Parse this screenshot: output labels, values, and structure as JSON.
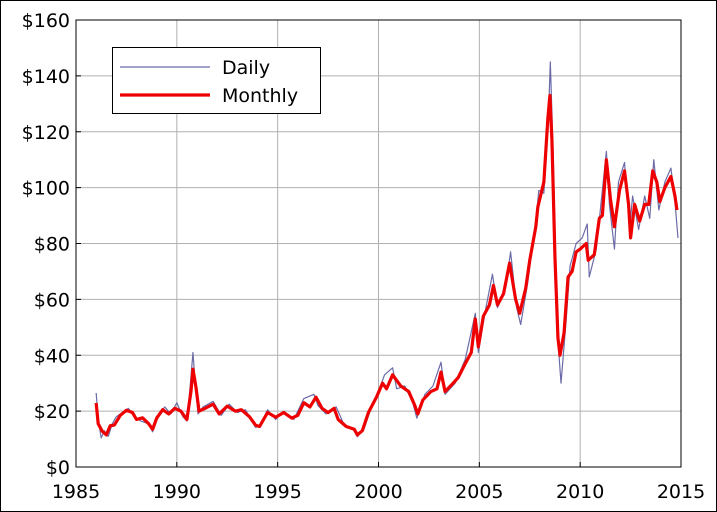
{
  "chart_data": {
    "type": "line",
    "xlim": [
      1985,
      2015
    ],
    "xticks": [
      1985,
      1990,
      1995,
      2000,
      2005,
      2010,
      2015
    ],
    "ylim": [
      0,
      160
    ],
    "yticks": [
      {
        "value": 0,
        "label": "$0"
      },
      {
        "value": 20,
        "label": "$20"
      },
      {
        "value": 40,
        "label": "$40"
      },
      {
        "value": 60,
        "label": "$60"
      },
      {
        "value": 80,
        "label": "$80"
      },
      {
        "value": 100,
        "label": "$100"
      },
      {
        "value": 120,
        "label": "$120"
      },
      {
        "value": 140,
        "label": "$140"
      },
      {
        "value": 160,
        "label": "$160"
      }
    ],
    "grid": true,
    "legend": "upper left",
    "series": [
      {
        "name": "Daily",
        "color": "#6b6ba8",
        "width": 1.2,
        "x": [
          1986.0,
          1986.1,
          1986.25,
          1986.4,
          1986.6,
          1986.8,
          1987.0,
          1987.3,
          1987.6,
          1987.9,
          1988.2,
          1988.6,
          1988.8,
          1989.1,
          1989.4,
          1989.7,
          1990.0,
          1990.3,
          1990.5,
          1990.65,
          1990.8,
          1990.9,
          1991.05,
          1991.3,
          1991.8,
          1992.2,
          1992.6,
          1993.0,
          1993.4,
          1993.9,
          1994.1,
          1994.5,
          1994.9,
          1995.3,
          1995.8,
          1996.3,
          1996.8,
          1997.0,
          1997.4,
          1997.9,
          1998.3,
          1998.7,
          1998.95,
          1999.3,
          1999.7,
          2000.0,
          2000.3,
          2000.7,
          2000.9,
          2001.3,
          2001.7,
          2001.9,
          2002.3,
          2002.7,
          2003.1,
          2003.3,
          2003.8,
          2004.3,
          2004.8,
          2004.95,
          2005.3,
          2005.65,
          2005.9,
          2006.3,
          2006.55,
          2006.85,
          2007.05,
          2007.4,
          2007.8,
          2007.95,
          2008.2,
          2008.45,
          2008.52,
          2008.65,
          2008.8,
          2008.95,
          2009.05,
          2009.3,
          2009.5,
          2009.8,
          2010.1,
          2010.35,
          2010.45,
          2010.8,
          2011.0,
          2011.3,
          2011.45,
          2011.7,
          2011.9,
          2012.2,
          2012.45,
          2012.6,
          2012.9,
          2013.2,
          2013.45,
          2013.65,
          2013.9,
          2014.2,
          2014.5,
          2014.7,
          2014.85
        ],
        "values": [
          26.5,
          17.0,
          10.4,
          13.0,
          11.0,
          15.5,
          18.0,
          19.5,
          21.0,
          18.0,
          16.5,
          15.5,
          12.6,
          18.5,
          21.5,
          19.0,
          23.0,
          18.0,
          16.5,
          28.0,
          41.0,
          31.0,
          19.0,
          21.5,
          23.5,
          18.5,
          22.5,
          19.5,
          20.5,
          14.2,
          14.5,
          20.5,
          17.0,
          20.0,
          17.0,
          24.5,
          26.0,
          22.0,
          19.0,
          21.5,
          15.0,
          14.0,
          10.8,
          14.0,
          22.5,
          27.0,
          33.0,
          35.5,
          28.0,
          29.0,
          23.0,
          17.5,
          26.0,
          29.0,
          37.5,
          26.0,
          30.0,
          38.5,
          55.0,
          41.0,
          56.0,
          69.0,
          57.0,
          64.0,
          77.0,
          57.0,
          51.0,
          66.0,
          88.0,
          99.0,
          98.0,
          130.0,
          145.0,
          115.0,
          70.0,
          40.0,
          30.0,
          52.0,
          72.0,
          80.0,
          82.0,
          87.0,
          68.0,
          78.0,
          92.0,
          113.0,
          94.0,
          78.0,
          102.0,
          109.0,
          85.0,
          97.0,
          85.0,
          97.0,
          89.0,
          110.0,
          92.0,
          102.0,
          107.0,
          95.0,
          82.0
        ]
      },
      {
        "name": "Monthly",
        "color": "#ee0000",
        "width": 3.2,
        "x": [
          1986.0,
          1986.1,
          1986.3,
          1986.5,
          1986.7,
          1986.9,
          1987.2,
          1987.5,
          1987.8,
          1988.0,
          1988.3,
          1988.6,
          1988.8,
          1989.0,
          1989.3,
          1989.6,
          1989.9,
          1990.2,
          1990.5,
          1990.7,
          1990.8,
          1990.95,
          1991.1,
          1991.4,
          1991.8,
          1992.1,
          1992.5,
          1992.9,
          1993.2,
          1993.6,
          1993.9,
          1994.1,
          1994.5,
          1994.9,
          1995.3,
          1995.7,
          1996.0,
          1996.3,
          1996.6,
          1996.9,
          1997.2,
          1997.5,
          1997.8,
          1998.0,
          1998.4,
          1998.8,
          1998.95,
          1999.2,
          1999.5,
          1999.9,
          2000.2,
          2000.4,
          2000.7,
          2000.9,
          2001.1,
          2001.5,
          2001.8,
          2001.95,
          2002.2,
          2002.6,
          2002.9,
          2003.1,
          2003.3,
          2003.7,
          2003.95,
          2004.3,
          2004.6,
          2004.8,
          2004.95,
          2005.2,
          2005.5,
          2005.7,
          2005.9,
          2006.2,
          2006.5,
          2006.8,
          2007.0,
          2007.3,
          2007.5,
          2007.8,
          2007.9,
          2008.2,
          2008.4,
          2008.5,
          2008.6,
          2008.75,
          2008.9,
          2009.0,
          2009.2,
          2009.4,
          2009.6,
          2009.8,
          2010.0,
          2010.3,
          2010.4,
          2010.7,
          2010.95,
          2011.1,
          2011.3,
          2011.5,
          2011.7,
          2011.95,
          2012.2,
          2012.4,
          2012.5,
          2012.7,
          2012.95,
          2013.2,
          2013.4,
          2013.6,
          2013.8,
          2013.95,
          2014.2,
          2014.5,
          2014.7,
          2014.8
        ],
        "values": [
          22.9,
          15.5,
          12.8,
          11.5,
          14.8,
          15.0,
          18.5,
          20.3,
          19.5,
          17.0,
          17.6,
          15.5,
          13.5,
          17.5,
          20.5,
          19.0,
          21.0,
          20.0,
          17.0,
          27.0,
          35.0,
          28.5,
          20.0,
          21.0,
          22.5,
          19.0,
          21.8,
          20.0,
          20.5,
          18.0,
          15.0,
          14.5,
          19.5,
          17.8,
          19.5,
          17.5,
          18.5,
          23.0,
          21.5,
          25.0,
          21.0,
          19.5,
          21.0,
          17.0,
          14.5,
          13.5,
          11.5,
          13.0,
          19.5,
          25.0,
          30.0,
          28.0,
          33.0,
          31.0,
          29.0,
          27.0,
          22.0,
          19.0,
          24.0,
          27.0,
          28.0,
          34.0,
          27.0,
          30.0,
          32.0,
          37.0,
          41.0,
          53.0,
          43.0,
          54.0,
          58.0,
          65.0,
          58.0,
          62.0,
          73.0,
          60.0,
          55.0,
          64.0,
          74.0,
          86.0,
          93.0,
          102.0,
          125.0,
          133.0,
          117.0,
          75.0,
          46.0,
          40.0,
          48.0,
          68.0,
          70.0,
          77.0,
          78.0,
          80.0,
          74.0,
          76.0,
          89.0,
          90.0,
          110.0,
          96.0,
          86.0,
          99.0,
          106.0,
          94.0,
          82.0,
          94.0,
          88.0,
          94.0,
          94.0,
          106.0,
          102.0,
          95.0,
          100.0,
          104.0,
          97.0,
          92.0
        ]
      }
    ]
  }
}
